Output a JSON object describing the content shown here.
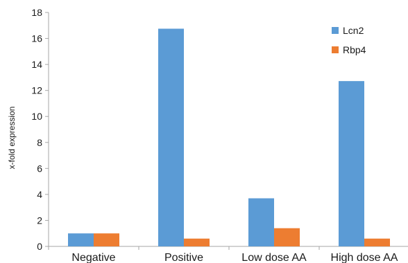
{
  "chart_data": {
    "type": "bar",
    "categories": [
      "Negative",
      "Positive",
      "Low dose AA",
      "High dose AA"
    ],
    "series": [
      {
        "name": "Lcn2",
        "values": [
          1.0,
          16.75,
          3.7,
          12.72
        ],
        "color": "#5B9BD5"
      },
      {
        "name": "Rbp4",
        "values": [
          1.0,
          0.6,
          1.4,
          0.6
        ],
        "color": "#ED7D31"
      }
    ],
    "ylabel": "x-fold expression",
    "xlabel": "",
    "ylim": [
      0,
      18
    ],
    "yticks": [
      0,
      2,
      4,
      6,
      8,
      10,
      12,
      14,
      16,
      18
    ],
    "grid": false,
    "legend_position": "top-right"
  }
}
